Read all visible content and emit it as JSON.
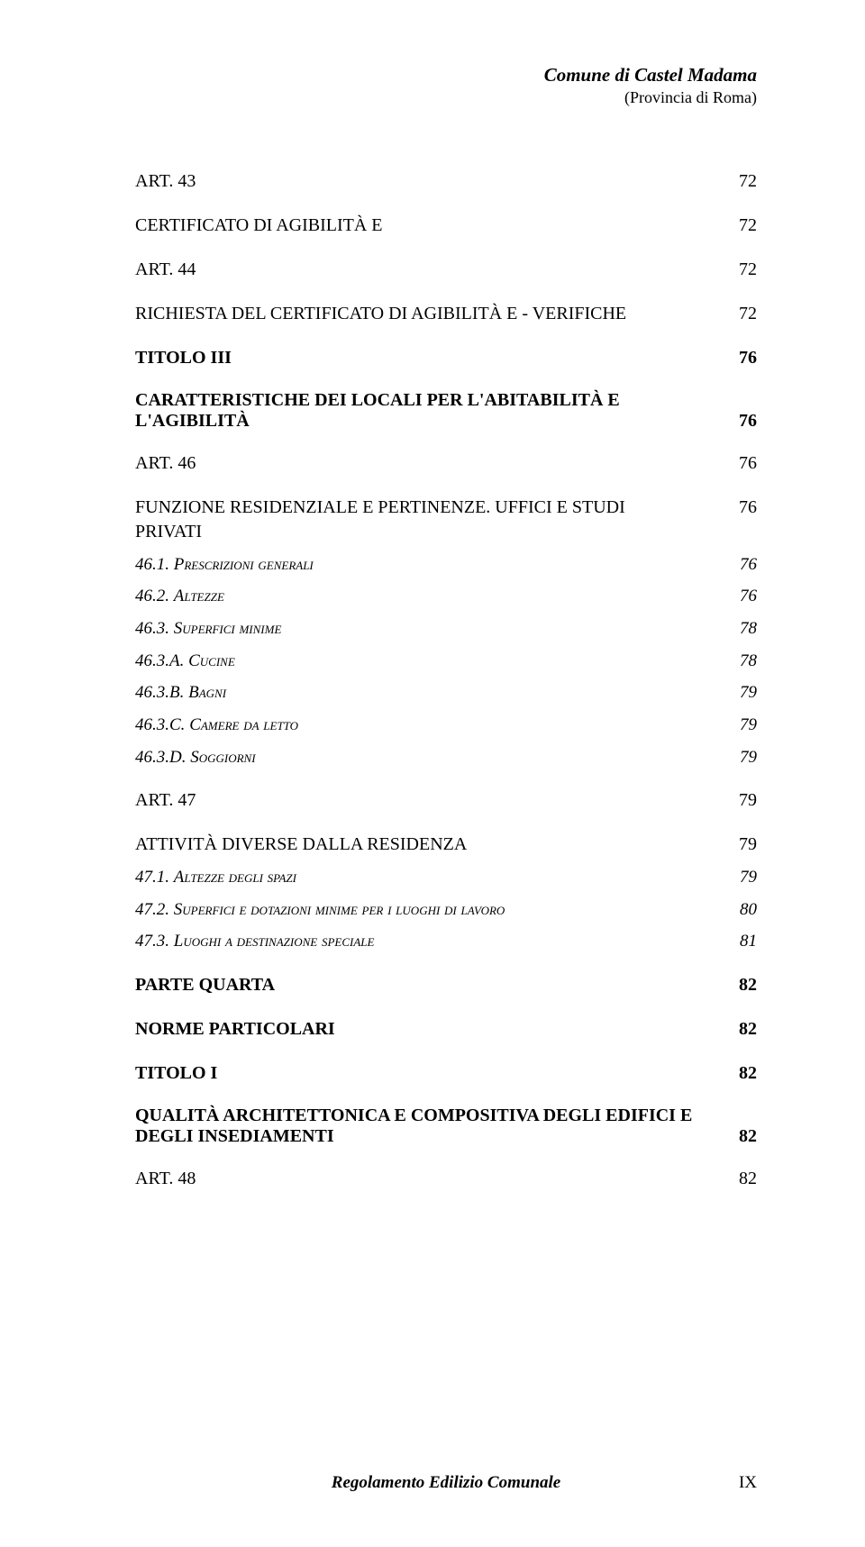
{
  "header": {
    "title": "Comune di Castel Madama",
    "sub": "(Provincia di Roma)"
  },
  "toc": [
    {
      "cls": "l1",
      "label": "ART. 43",
      "page": "72"
    },
    {
      "cls": "l1",
      "label": "CERTIFICATO DI AGIBILITÀ E",
      "page": "72"
    },
    {
      "cls": "l1",
      "label": "ART. 44",
      "page": "72"
    },
    {
      "cls": "l1",
      "label": "RICHIESTA DEL CERTIFICATO DI AGIBILITÀ E  - VERIFICHE",
      "page": "72"
    },
    {
      "cls": "l1-bold",
      "label": "TITOLO III",
      "page": "76"
    },
    {
      "cls": "l1-bold",
      "multi": true,
      "line1": "CARATTERISTICHE DEI LOCALI PER L'ABITABILITÀ E",
      "line2": "L'AGIBILITÀ",
      "page": "76"
    },
    {
      "cls": "l1",
      "label": "ART. 46",
      "page": "76"
    },
    {
      "cls": "l1",
      "label": "FUNZIONE RESIDENZIALE E PERTINENZE. UFFICI E STUDI PRIVATI",
      "page": "76"
    },
    {
      "cls": "l2",
      "pre": "46.1.    ",
      "sc": "Prescrizioni generali",
      "page": "76"
    },
    {
      "cls": "l2",
      "pre": "46.2.    ",
      "sc": "Altezze",
      "page": "76"
    },
    {
      "cls": "l2",
      "pre": "46.3.    ",
      "sc": "Superfici minime",
      "page": "78"
    },
    {
      "cls": "l2",
      "pre": "46.3.A.    ",
      "sc": "Cucine",
      "page": "78"
    },
    {
      "cls": "l2",
      "pre": "46.3.B.    ",
      "sc": "Bagni",
      "page": "79"
    },
    {
      "cls": "l2",
      "pre": "46.3.C.    ",
      "sc": "Camere da letto",
      "page": "79"
    },
    {
      "cls": "l2",
      "pre": "46.3.D.    ",
      "sc": "Soggiorni",
      "page": "79"
    },
    {
      "cls": "l1",
      "label": "ART. 47",
      "page": "79"
    },
    {
      "cls": "l1",
      "label": "ATTIVITÀ DIVERSE DALLA RESIDENZA",
      "page": "79"
    },
    {
      "cls": "l2",
      "pre": "47.1.    ",
      "sc": "Altezze degli spazi",
      "page": "79"
    },
    {
      "cls": "l2",
      "pre": "47.2.    ",
      "sc": "Superfici e dotazioni minime per i luoghi di lavoro",
      "page": "80"
    },
    {
      "cls": "l2",
      "pre": "47.3.    ",
      "sc": "Luoghi a destinazione speciale",
      "page": "81"
    },
    {
      "cls": "l1-bold",
      "label": "PARTE QUARTA",
      "page": "82"
    },
    {
      "cls": "l1-bold",
      "label": "NORME PARTICOLARI",
      "page": "82"
    },
    {
      "cls": "l1-bold",
      "label": "TITOLO I",
      "page": "82"
    },
    {
      "cls": "l1-bold",
      "multi": true,
      "line1": "QUALITÀ ARCHITETTONICA E COMPOSITIVA DEGLI EDIFICI E",
      "line2": "DEGLI INSEDIAMENTI",
      "page": "82"
    },
    {
      "cls": "l1",
      "label": "ART. 48",
      "page": "82"
    }
  ],
  "footer": {
    "title": "Regolamento Edilizio Comunale",
    "page": "IX"
  }
}
